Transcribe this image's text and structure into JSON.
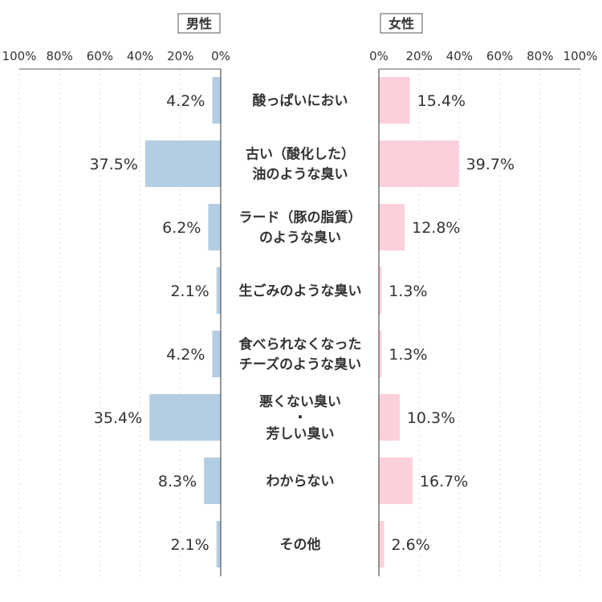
{
  "chart_data": {
    "type": "bar",
    "orientation": "horizontal-butterfly",
    "series": [
      {
        "name": "男性",
        "color": "#b3cde3",
        "values": [
          4.2,
          37.5,
          6.2,
          2.1,
          4.2,
          35.4,
          8.3,
          2.1
        ]
      },
      {
        "name": "女性",
        "color": "#fcd0da",
        "values": [
          15.4,
          39.7,
          12.8,
          1.3,
          1.3,
          10.3,
          16.7,
          2.6
        ]
      }
    ],
    "categories": [
      [
        "酸っぱいにおい"
      ],
      [
        "古い（酸化した）",
        "油のような臭い"
      ],
      [
        "ラード（豚の脂質）",
        "のような臭い"
      ],
      [
        "生ごみのような臭い"
      ],
      [
        "食べられなくなった",
        "チーズのような臭い"
      ],
      [
        "悪くない臭い",
        "・",
        "芳しい臭い"
      ],
      [
        "わからない"
      ],
      [
        "その他"
      ]
    ],
    "xlim": [
      0,
      100
    ],
    "ticks": [
      "0%",
      "20%",
      "40%",
      "60%",
      "80%",
      "100%"
    ],
    "value_suffix": "%",
    "grid": true,
    "legend": "panel-headers"
  }
}
